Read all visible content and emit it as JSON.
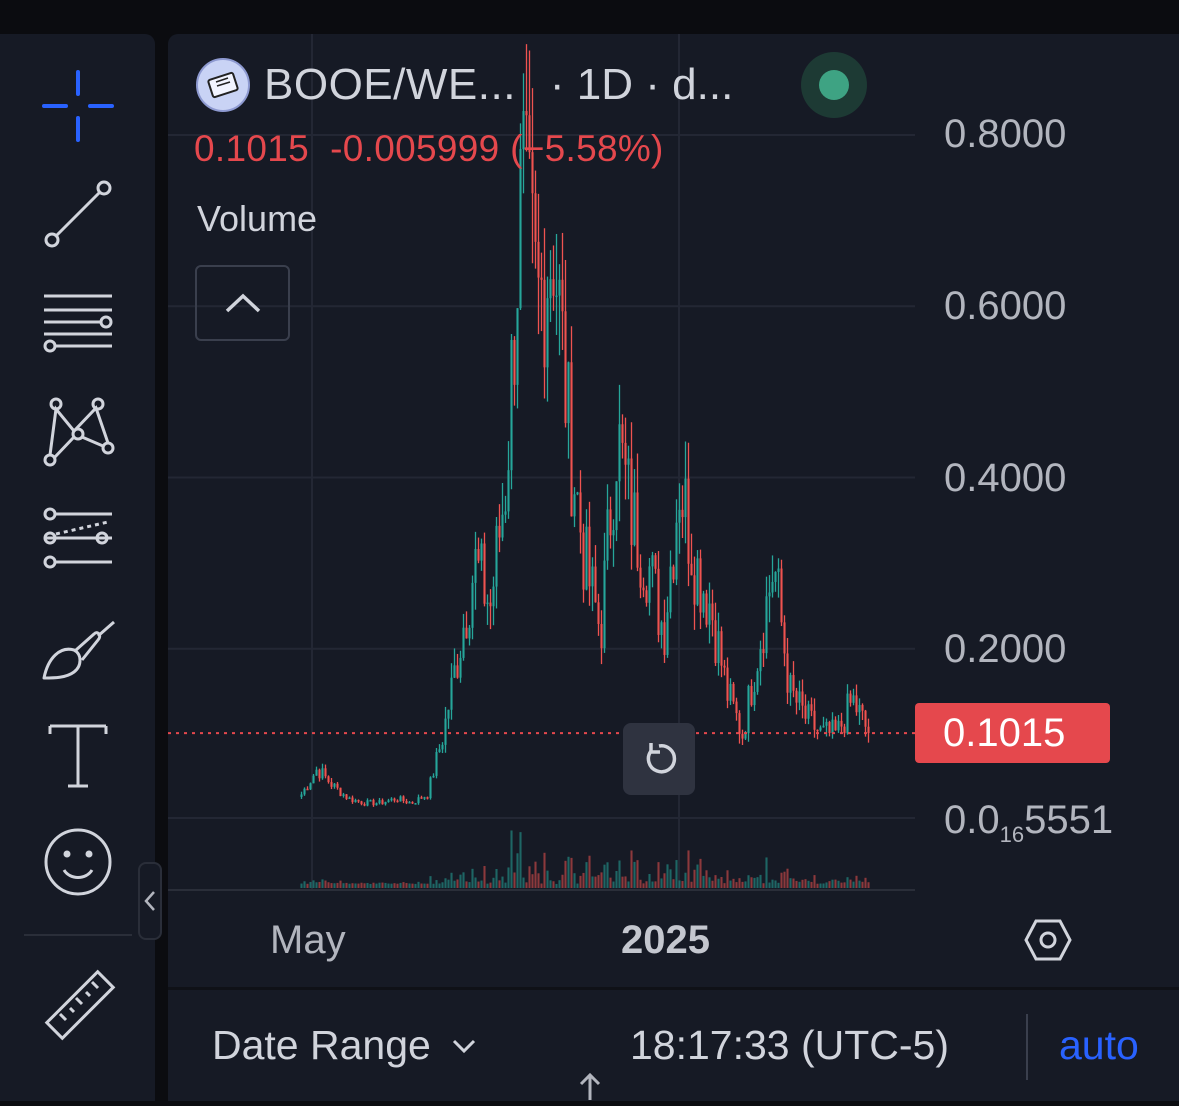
{
  "symbol": {
    "name": "BOOE/WE...",
    "interval": "· 1D · d...",
    "logo_icon": "book-token-icon",
    "status": "live"
  },
  "quote": {
    "last": "0.1015",
    "change": "-0.005999",
    "change_pct": "(−5.58%)",
    "color": "#e5484d"
  },
  "indicators": {
    "volume_label": "Volume"
  },
  "y_axis": {
    "labels": [
      "0.8000",
      "0.6000",
      "0.4000",
      "0.2000"
    ],
    "bottom_prefix": "0.0",
    "bottom_subscript": "16",
    "bottom_suffix": "5551",
    "current_price_tag": "0.1015"
  },
  "x_axis": {
    "labels": [
      "May",
      "2025"
    ]
  },
  "bottom_bar": {
    "date_range": "Date Range",
    "clock": "18:17:33 (UTC-5)",
    "scale_mode": "auto"
  },
  "toolbar": {
    "tools": [
      "crosshair-icon",
      "trend-line-icon",
      "fib-retracement-icon",
      "pattern-icon",
      "forecast-icon",
      "brush-icon",
      "text-icon",
      "emoji-icon",
      "ruler-icon"
    ]
  },
  "colors": {
    "up": "#26a69a",
    "down": "#ef5350",
    "accent": "#2962ff",
    "background": "#161a25"
  },
  "chart_data": {
    "type": "candlestick",
    "interval": "1D",
    "ylim": [
      0.0,
      0.85
    ],
    "x_ticks": [
      "May",
      "2025"
    ],
    "current_price": 0.1015,
    "close_path_approx": [
      0.03,
      0.06,
      0.04,
      0.025,
      0.02,
      0.02,
      0.025,
      0.02,
      0.03,
      0.1,
      0.2,
      0.3,
      0.25,
      0.4,
      0.75,
      0.6,
      0.68,
      0.45,
      0.3,
      0.22,
      0.45,
      0.35,
      0.3,
      0.22,
      0.4,
      0.3,
      0.25,
      0.15,
      0.1,
      0.2,
      0.3,
      0.15,
      0.12,
      0.1,
      0.1,
      0.14,
      0.1015
    ]
  }
}
